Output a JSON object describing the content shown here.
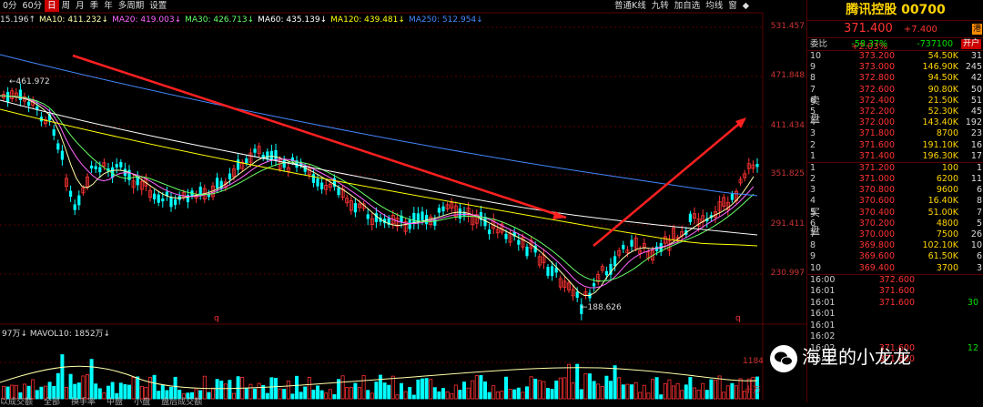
{
  "toolbar_left": [
    "0分",
    "60分",
    "日",
    "周",
    "月",
    "季",
    "年",
    "多周期",
    "设置"
  ],
  "toolbar_left_selected": 2,
  "toolbar_right": [
    "普通K线",
    "九转",
    "加自选",
    "均线",
    "窗",
    "◆"
  ],
  "ma_line": [
    {
      "t": "15.196↑",
      "c": "#dddddd"
    },
    {
      "t": "MA10: 411.232↓",
      "c": "#ffffaa"
    },
    {
      "t": "MA20: 419.003↓",
      "c": "#ff66ff"
    },
    {
      "t": "MA30: 426.713↓",
      "c": "#66ff66"
    },
    {
      "t": "MA60: 435.139↓",
      "c": "#ffffff"
    },
    {
      "t": "MA120: 439.481↓",
      "c": "#ffff00"
    },
    {
      "t": "MA250: 512.954↓",
      "c": "#4488ff"
    }
  ],
  "price_axis": [
    "531.457",
    "471.848",
    "411.434",
    "351.825",
    "291.411",
    "230.997"
  ],
  "markers": {
    "high": "461.972",
    "low": "188.626",
    "q": "q"
  },
  "vol_header": "97万↓  MAVOL10: 1852万↓",
  "vol_axis": [
    "1184",
    "十万"
  ],
  "bottom_tabs": [
    "以成交额",
    "全部",
    "换手率",
    "中盘",
    "小盘",
    "盘后成交额"
  ],
  "title": "腾讯控股 00700",
  "price": {
    "last": "371.400",
    "chg": "+7.400",
    "pct": "+2.03%",
    "icon": "港"
  },
  "committee": {
    "label": "委比",
    "ratio": "-58.37%",
    "diff": "-737100",
    "btn": "开户"
  },
  "sell_label": [
    "卖",
    "盘"
  ],
  "buy_label": [
    "买",
    "盘"
  ],
  "sell": [
    {
      "lv": "10",
      "p": "373.200",
      "v": "54.50K",
      "n": "31"
    },
    {
      "lv": "9",
      "p": "373.000",
      "v": "146.90K",
      "n": "245"
    },
    {
      "lv": "8",
      "p": "372.800",
      "v": "94.50K",
      "n": "42"
    },
    {
      "lv": "7",
      "p": "372.600",
      "v": "90.80K",
      "n": "50"
    },
    {
      "lv": "6",
      "p": "372.400",
      "v": "21.50K",
      "n": "51"
    },
    {
      "lv": "5",
      "p": "372.200",
      "v": "52.30K",
      "n": "45"
    },
    {
      "lv": "4",
      "p": "372.000",
      "v": "143.40K",
      "n": "192"
    },
    {
      "lv": "3",
      "p": "371.800",
      "v": "8700",
      "n": "23"
    },
    {
      "lv": "2",
      "p": "371.600",
      "v": "191.10K",
      "n": "16"
    },
    {
      "lv": "1",
      "p": "371.400",
      "v": "196.30K",
      "n": "17"
    }
  ],
  "buy": [
    {
      "lv": "1",
      "p": "371.200",
      "v": "100",
      "n": "1"
    },
    {
      "lv": "2",
      "p": "371.000",
      "v": "6200",
      "n": "11"
    },
    {
      "lv": "3",
      "p": "370.800",
      "v": "9600",
      "n": "6"
    },
    {
      "lv": "4",
      "p": "370.600",
      "v": "16.40K",
      "n": "8"
    },
    {
      "lv": "5",
      "p": "370.400",
      "v": "51.00K",
      "n": "7"
    },
    {
      "lv": "6",
      "p": "370.200",
      "v": "4800",
      "n": "5"
    },
    {
      "lv": "7",
      "p": "370.000",
      "v": "7500",
      "n": "26"
    },
    {
      "lv": "8",
      "p": "369.800",
      "v": "102.10K",
      "n": "10"
    },
    {
      "lv": "9",
      "p": "369.600",
      "v": "61.50K",
      "n": "6"
    },
    {
      "lv": "10",
      "p": "369.400",
      "v": "3700",
      "n": "3"
    }
  ],
  "ticks": [
    {
      "t": "16:00",
      "p": "372.600",
      "v": ""
    },
    {
      "t": "16:01",
      "p": "371.600",
      "v": ""
    },
    {
      "t": "16:01",
      "p": "371.600",
      "v": "30"
    },
    {
      "t": "16:01",
      "p": "",
      "v": ""
    },
    {
      "t": "16:01",
      "p": "",
      "v": ""
    },
    {
      "t": "16:02",
      "p": "",
      "v": ""
    },
    {
      "t": "16:02",
      "p": "371.600",
      "v": "12"
    },
    {
      "t": "16:02",
      "p": "371.600",
      "v": ""
    }
  ],
  "watermark": "海里的小龙龙",
  "watermark_icon": "wechat-icon",
  "colors": {
    "up": "#ff3333",
    "down": "#00ffff",
    "grid": "#5a0000",
    "trend": "#ff2020"
  }
}
